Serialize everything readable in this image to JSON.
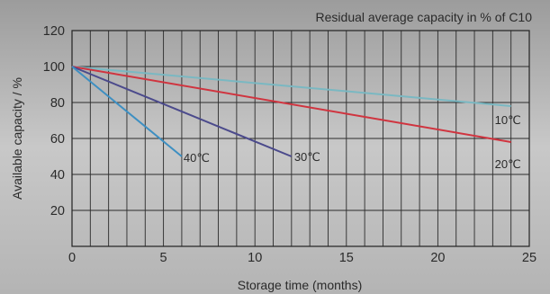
{
  "chart_data": {
    "type": "line",
    "title": "Residual average capacity in % of C10",
    "xlabel": "Storage time (months)",
    "ylabel": "Available capacity / %",
    "xlim": [
      0,
      25
    ],
    "ylim": [
      0,
      120
    ],
    "x_ticks": [
      "0",
      "5",
      "10",
      "15",
      "20",
      "25"
    ],
    "y_ticks": [
      "20",
      "40",
      "60",
      "80",
      "100",
      "120"
    ],
    "grid": true,
    "series": [
      {
        "name": "10℃",
        "color": "#7ab8c2",
        "x": [
          0,
          24
        ],
        "y": [
          100,
          78
        ]
      },
      {
        "name": "20℃",
        "color": "#d0343f",
        "x": [
          0,
          24
        ],
        "y": [
          100,
          58
        ]
      },
      {
        "name": "30℃",
        "color": "#4b4a8c",
        "x": [
          0,
          12
        ],
        "y": [
          100,
          50
        ]
      },
      {
        "name": "40℃",
        "color": "#3d8fc2",
        "x": [
          0,
          6
        ],
        "y": [
          100,
          50
        ]
      }
    ]
  }
}
